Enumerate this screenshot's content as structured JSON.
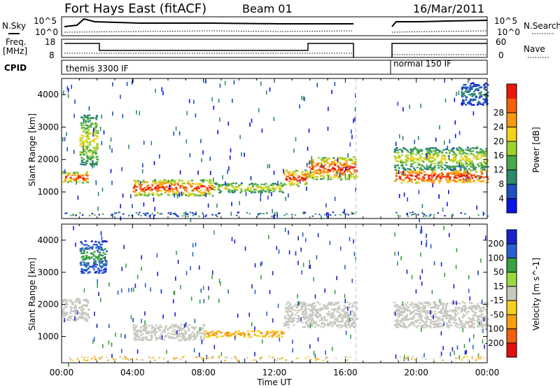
{
  "header": {
    "station": "Fort Hays East (fitACF)",
    "beam": "Beam 01",
    "date": "16/Mar/2011"
  },
  "noise_panel": {
    "left_label": "N.Sky",
    "left_ticks": [
      "10^5",
      "10^0"
    ],
    "right_ticks": [
      "10^5",
      "10^0"
    ],
    "right_label": "N.Search"
  },
  "freq_panel": {
    "left_label_line1": "Freq.",
    "left_label_line2": "[MHz]",
    "left_ticks": [
      "18",
      "8"
    ],
    "right_ticks": [
      "60",
      "0"
    ],
    "right_label": "Nave"
  },
  "cpid_panel": {
    "label": "CPID",
    "segments": [
      "themis 3300 IF",
      "normal 150 IF"
    ]
  },
  "x_axis": {
    "ticks": [
      "00:00",
      "04:00",
      "08:00",
      "12:00",
      "16:00",
      "20:00",
      "00:00"
    ],
    "label": "Time UT"
  },
  "chart_data": [
    {
      "type": "heatmap",
      "name": "power",
      "xlabel": "Time UT",
      "ylabel": "Slant Range [km]",
      "xlim_hours": [
        0,
        24
      ],
      "ylim_km": [
        180,
        4500
      ],
      "y_ticks": [
        "1000",
        "2000",
        "3000",
        "4000"
      ],
      "data_gap_hours": [
        16.6,
        18.7
      ],
      "colorbar": {
        "label": "Power [dB]",
        "ticks": [
          "4",
          "8",
          "12",
          "16",
          "20",
          "24",
          "28"
        ],
        "colors": [
          "#0a14e6",
          "#1e4fbf",
          "#2e8a6e",
          "#4aa84a",
          "#9cd12a",
          "#f2d21a",
          "#f59a10",
          "#f5600c",
          "#e81a0a"
        ]
      },
      "bands": [
        {
          "t": [
            0.0,
            1.5
          ],
          "range": [
            1300,
            1650
          ],
          "level": "high"
        },
        {
          "t": [
            1.0,
            2.0
          ],
          "range": [
            1800,
            3400
          ],
          "level": "medium"
        },
        {
          "t": [
            4.0,
            8.5
          ],
          "range": [
            900,
            1400
          ],
          "level": "high"
        },
        {
          "t": [
            8.5,
            12.5
          ],
          "range": [
            1000,
            1300
          ],
          "level": "medium"
        },
        {
          "t": [
            12.5,
            13.8
          ],
          "range": [
            1200,
            1700
          ],
          "level": "high"
        },
        {
          "t": [
            13.8,
            16.6
          ],
          "range": [
            1400,
            2100
          ],
          "level": "high"
        },
        {
          "t": [
            18.7,
            24.0
          ],
          "range": [
            1300,
            1700
          ],
          "level": "very-high"
        },
        {
          "t": [
            18.7,
            24.0
          ],
          "range": [
            1700,
            2400
          ],
          "level": "medium"
        },
        {
          "t": [
            22.5,
            24.0
          ],
          "range": [
            3700,
            4400
          ],
          "level": "low"
        }
      ]
    },
    {
      "type": "heatmap",
      "name": "velocity",
      "xlabel": "Time UT",
      "ylabel": "Slant Range [km]",
      "xlim_hours": [
        0,
        24
      ],
      "ylim_km": [
        180,
        4500
      ],
      "y_ticks": [
        "1000",
        "2000",
        "3000",
        "4000"
      ],
      "data_gap_hours": [
        16.6,
        18.7
      ],
      "colorbar": {
        "label": "Velocity [m s^-1]",
        "ticks": [
          "200",
          "100",
          "50",
          "15",
          "-15",
          "-50",
          "-100",
          "-200"
        ],
        "colors": [
          "#1a22c8",
          "#2a5fd0",
          "#3aa040",
          "#9ad840",
          "#c8c8c0",
          "#f5d020",
          "#f5a010",
          "#f06010",
          "#e01010"
        ]
      },
      "bands": [
        {
          "t": [
            0.0,
            1.5
          ],
          "range": [
            1500,
            2200
          ],
          "level": "ground"
        },
        {
          "t": [
            1.0,
            2.5
          ],
          "range": [
            3000,
            4000
          ],
          "level": "positive"
        },
        {
          "t": [
            4.0,
            8.0
          ],
          "range": [
            900,
            1400
          ],
          "level": "ground"
        },
        {
          "t": [
            8.0,
            12.5
          ],
          "range": [
            1000,
            1200
          ],
          "level": "negative"
        },
        {
          "t": [
            12.5,
            16.6
          ],
          "range": [
            1300,
            2100
          ],
          "level": "ground"
        },
        {
          "t": [
            18.7,
            24.0
          ],
          "range": [
            1300,
            2100
          ],
          "level": "ground"
        }
      ]
    }
  ]
}
